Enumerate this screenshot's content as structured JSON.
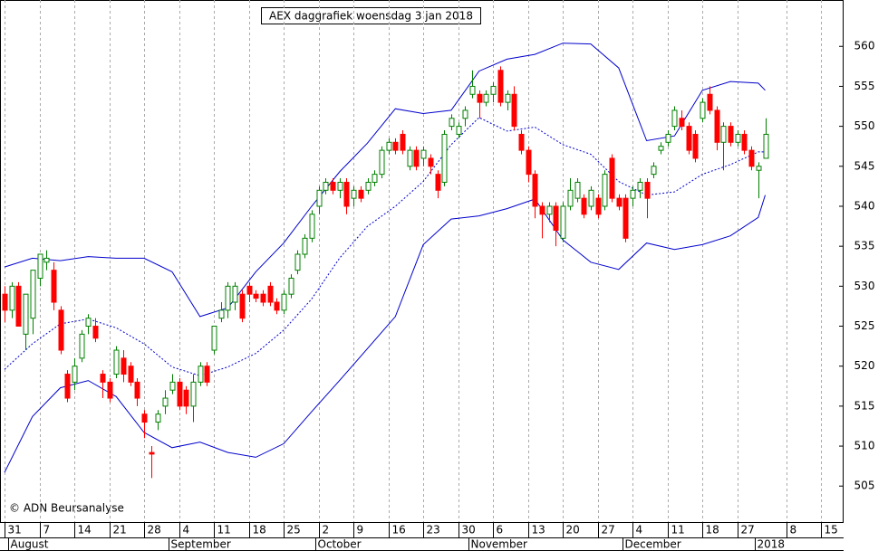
{
  "chart_data": {
    "type": "candlestick",
    "title": "AEX daggrafiek woensdag 3 jan 2018",
    "copyright": "© ADN Beursanalyse",
    "up_color": "#008000",
    "down_color": "#ff0000",
    "open": [
      529,
      527,
      530,
      524,
      526,
      531,
      533,
      532,
      527,
      519,
      518,
      521,
      525,
      525,
      519,
      518,
      519,
      521,
      520,
      518,
      514,
      509.2,
      513,
      515,
      517,
      518,
      517,
      515,
      518,
      520,
      522,
      526,
      527,
      528,
      529,
      530,
      529,
      529,
      530,
      528,
      527,
      529,
      532,
      534,
      536,
      540,
      542,
      543,
      542,
      543,
      541,
      542,
      542,
      543,
      544,
      547,
      548,
      549,
      545,
      547,
      546,
      546,
      544,
      543,
      550,
      549,
      551,
      554,
      554,
      553,
      554,
      557,
      553,
      554,
      549,
      547,
      544,
      540,
      539,
      540,
      536,
      540,
      541,
      541,
      540,
      541,
      540,
      546,
      541,
      541,
      541,
      542,
      543,
      544,
      547,
      548,
      550,
      551,
      550,
      549,
      551,
      554,
      552,
      548,
      550,
      548,
      549,
      547,
      544.5,
      546
    ],
    "high": [
      530,
      530.5,
      530.5,
      529,
      532,
      534,
      534.5,
      533,
      527.5,
      519.5,
      521,
      524.5,
      526.5,
      526,
      519.5,
      518.5,
      522.5,
      522,
      520.5,
      518.5,
      514.5,
      510,
      514.5,
      517,
      519,
      518.5,
      517.5,
      519,
      520.5,
      520.5,
      525,
      528,
      530.5,
      530.5,
      529.5,
      530.5,
      529.5,
      529.5,
      530.5,
      528.5,
      529.5,
      531.5,
      534.5,
      536.5,
      539.5,
      542.5,
      543.5,
      543.5,
      543.5,
      543.5,
      542.5,
      542.5,
      543.5,
      544.5,
      547.5,
      548.5,
      548.5,
      549.5,
      547.5,
      547.5,
      547.5,
      546.5,
      544.5,
      549.5,
      551.5,
      550.5,
      552.5,
      557,
      554.5,
      554.5,
      555.5,
      557.5,
      554.5,
      555,
      549.5,
      547.5,
      544.5,
      540.5,
      540.5,
      540.5,
      540.5,
      543.5,
      543.5,
      541.5,
      542.5,
      541.5,
      544.5,
      546.5,
      541.5,
      541.5,
      542.5,
      543.5,
      543.5,
      545.5,
      548,
      549.5,
      552.5,
      552,
      550.5,
      549.5,
      553.5,
      555,
      552.5,
      550.5,
      550.5,
      549.5,
      549.5,
      547.5,
      545.5,
      551
    ],
    "low": [
      525.5,
      526,
      525,
      522,
      524,
      530,
      532,
      527,
      521.5,
      515.5,
      517,
      520.5,
      524,
      523,
      516,
      515.5,
      518.5,
      518,
      517.5,
      515,
      511,
      506,
      512,
      514,
      516.5,
      514.5,
      514,
      513,
      517.5,
      517.5,
      521.5,
      525.5,
      526,
      527,
      525.5,
      528,
      528,
      527.5,
      527.5,
      526.5,
      526.5,
      528.5,
      531.5,
      533.5,
      535.5,
      539,
      541.5,
      541.5,
      541,
      539,
      540,
      540.5,
      541.5,
      542.5,
      543.5,
      546.5,
      546.5,
      546.5,
      544.5,
      544.5,
      545,
      544,
      541,
      542.5,
      549.5,
      548.5,
      550,
      553.5,
      551,
      552.5,
      553,
      552.5,
      552,
      549.5,
      546.5,
      543,
      538.5,
      536,
      538,
      535,
      535.5,
      539.5,
      540.5,
      538.5,
      539.5,
      538.5,
      539.5,
      540.5,
      539.5,
      535.5,
      540,
      541,
      538.5,
      543.5,
      546.5,
      547.5,
      549.5,
      549.5,
      546.5,
      545.5,
      550.5,
      551.5,
      547,
      544.5,
      547.5,
      547.5,
      546.5,
      544.5,
      541,
      546
    ],
    "close": [
      527,
      530,
      525,
      529,
      532,
      534,
      533.5,
      528,
      522,
      516,
      520,
      524,
      526,
      523.5,
      518,
      516,
      522,
      519,
      518,
      516,
      513,
      509,
      514,
      516,
      518,
      515,
      515,
      518,
      520,
      518,
      525,
      527,
      530,
      530,
      526,
      529,
      528.5,
      528,
      528,
      527,
      529,
      531,
      534,
      536,
      539,
      542,
      543,
      542,
      543,
      540,
      542,
      541,
      543,
      544,
      547,
      548,
      547,
      547,
      547,
      545,
      547,
      545,
      542,
      549,
      551,
      550,
      552,
      555,
      553,
      554,
      555,
      553,
      554,
      550,
      547,
      544,
      540,
      539,
      540,
      537,
      540,
      542,
      543,
      539,
      542,
      539,
      544,
      541,
      540,
      536,
      542,
      543,
      541,
      545,
      547.5,
      549,
      552,
      550,
      547,
      546,
      553,
      552,
      548,
      550,
      548,
      549,
      547,
      545,
      545,
      549
    ],
    "bands": [
      {
        "name": "upper",
        "color": "#0000cc",
        "dashed": false,
        "x": [
          0,
          4,
          8,
          12,
          16,
          20,
          24,
          28,
          32,
          36,
          40,
          44,
          48,
          52,
          56,
          60,
          64,
          68,
          72,
          76,
          80,
          84,
          88,
          92,
          96,
          100,
          104,
          108,
          109
        ],
        "values": [
          532.4,
          533.5,
          533.2,
          533.7,
          533.5,
          533.5,
          531.8,
          526.2,
          527.3,
          531.8,
          535.4,
          540.0,
          544.3,
          547.9,
          552.2,
          551.6,
          552.0,
          556.9,
          558.4,
          559.0,
          560.4,
          560.3,
          557.3,
          548.2,
          548.8,
          554.5,
          555.6,
          555.4,
          554.5
        ]
      },
      {
        "name": "middle",
        "color": "#0000cc",
        "dashed": true,
        "x": [
          0,
          4,
          8,
          12,
          16,
          20,
          24,
          28,
          32,
          36,
          40,
          44,
          48,
          52,
          56,
          60,
          64,
          68,
          72,
          76,
          80,
          84,
          88,
          92,
          96,
          100,
          104,
          108,
          109
        ],
        "values": [
          519.6,
          522.8,
          525.3,
          525.9,
          524.8,
          522.8,
          519.9,
          518.8,
          519.9,
          521.6,
          524.5,
          528.4,
          533.5,
          537.5,
          540.0,
          543.1,
          547.7,
          551.1,
          549.4,
          549.9,
          547.7,
          546.5,
          543.1,
          541.4,
          541.8,
          544.0,
          545.2,
          546.8,
          546.8
        ]
      },
      {
        "name": "lower",
        "color": "#0000cc",
        "dashed": false,
        "x": [
          0,
          4,
          8,
          12,
          16,
          20,
          24,
          28,
          32,
          36,
          40,
          44,
          48,
          52,
          56,
          60,
          64,
          68,
          72,
          76,
          80,
          84,
          88,
          92,
          96,
          100,
          104,
          108,
          109
        ],
        "values": [
          506.7,
          513.7,
          517.3,
          518.2,
          516.2,
          511.7,
          509.8,
          510.5,
          509.2,
          508.6,
          510.3,
          514.3,
          518.2,
          522.2,
          526.2,
          535.2,
          538.4,
          538.8,
          539.7,
          540.9,
          535.8,
          533.0,
          532.1,
          535.4,
          534.6,
          535.2,
          536.3,
          538.6,
          541.4
        ]
      }
    ],
    "xlim": [
      -0.65,
      120.1
    ],
    "xticks": [
      {
        "value": 0,
        "label": "31"
      },
      {
        "value": 5,
        "label": "7"
      },
      {
        "value": 10,
        "label": "14"
      },
      {
        "value": 15,
        "label": "21"
      },
      {
        "value": 20,
        "label": "28"
      },
      {
        "value": 25,
        "label": "4"
      },
      {
        "value": 30,
        "label": "11"
      },
      {
        "value": 35,
        "label": "18"
      },
      {
        "value": 40,
        "label": "25"
      },
      {
        "value": 45,
        "label": "2"
      },
      {
        "value": 50,
        "label": "9"
      },
      {
        "value": 55,
        "label": "16"
      },
      {
        "value": 60,
        "label": "23"
      },
      {
        "value": 65,
        "label": "30"
      },
      {
        "value": 70,
        "label": "6"
      },
      {
        "value": 75,
        "label": "13"
      },
      {
        "value": 80,
        "label": "20"
      },
      {
        "value": 85,
        "label": "27"
      },
      {
        "value": 90,
        "label": "4"
      },
      {
        "value": 95,
        "label": "11"
      },
      {
        "value": 100,
        "label": "18"
      },
      {
        "value": 105,
        "label": "27"
      },
      {
        "value": 112,
        "label": "8"
      },
      {
        "value": 117,
        "label": "15"
      }
    ],
    "month_labels": [
      {
        "value": 1,
        "label": "August"
      },
      {
        "value": 24,
        "label": "September"
      },
      {
        "value": 45,
        "label": "October"
      },
      {
        "value": 67,
        "label": "November"
      },
      {
        "value": 89,
        "label": "December"
      },
      {
        "value": 108,
        "label": "2018"
      }
    ],
    "ylim": [
      500.5,
      565.8
    ],
    "yticks": [
      505,
      510,
      515,
      520,
      525,
      530,
      535,
      540,
      545,
      550,
      555,
      560
    ],
    "grid": true
  }
}
